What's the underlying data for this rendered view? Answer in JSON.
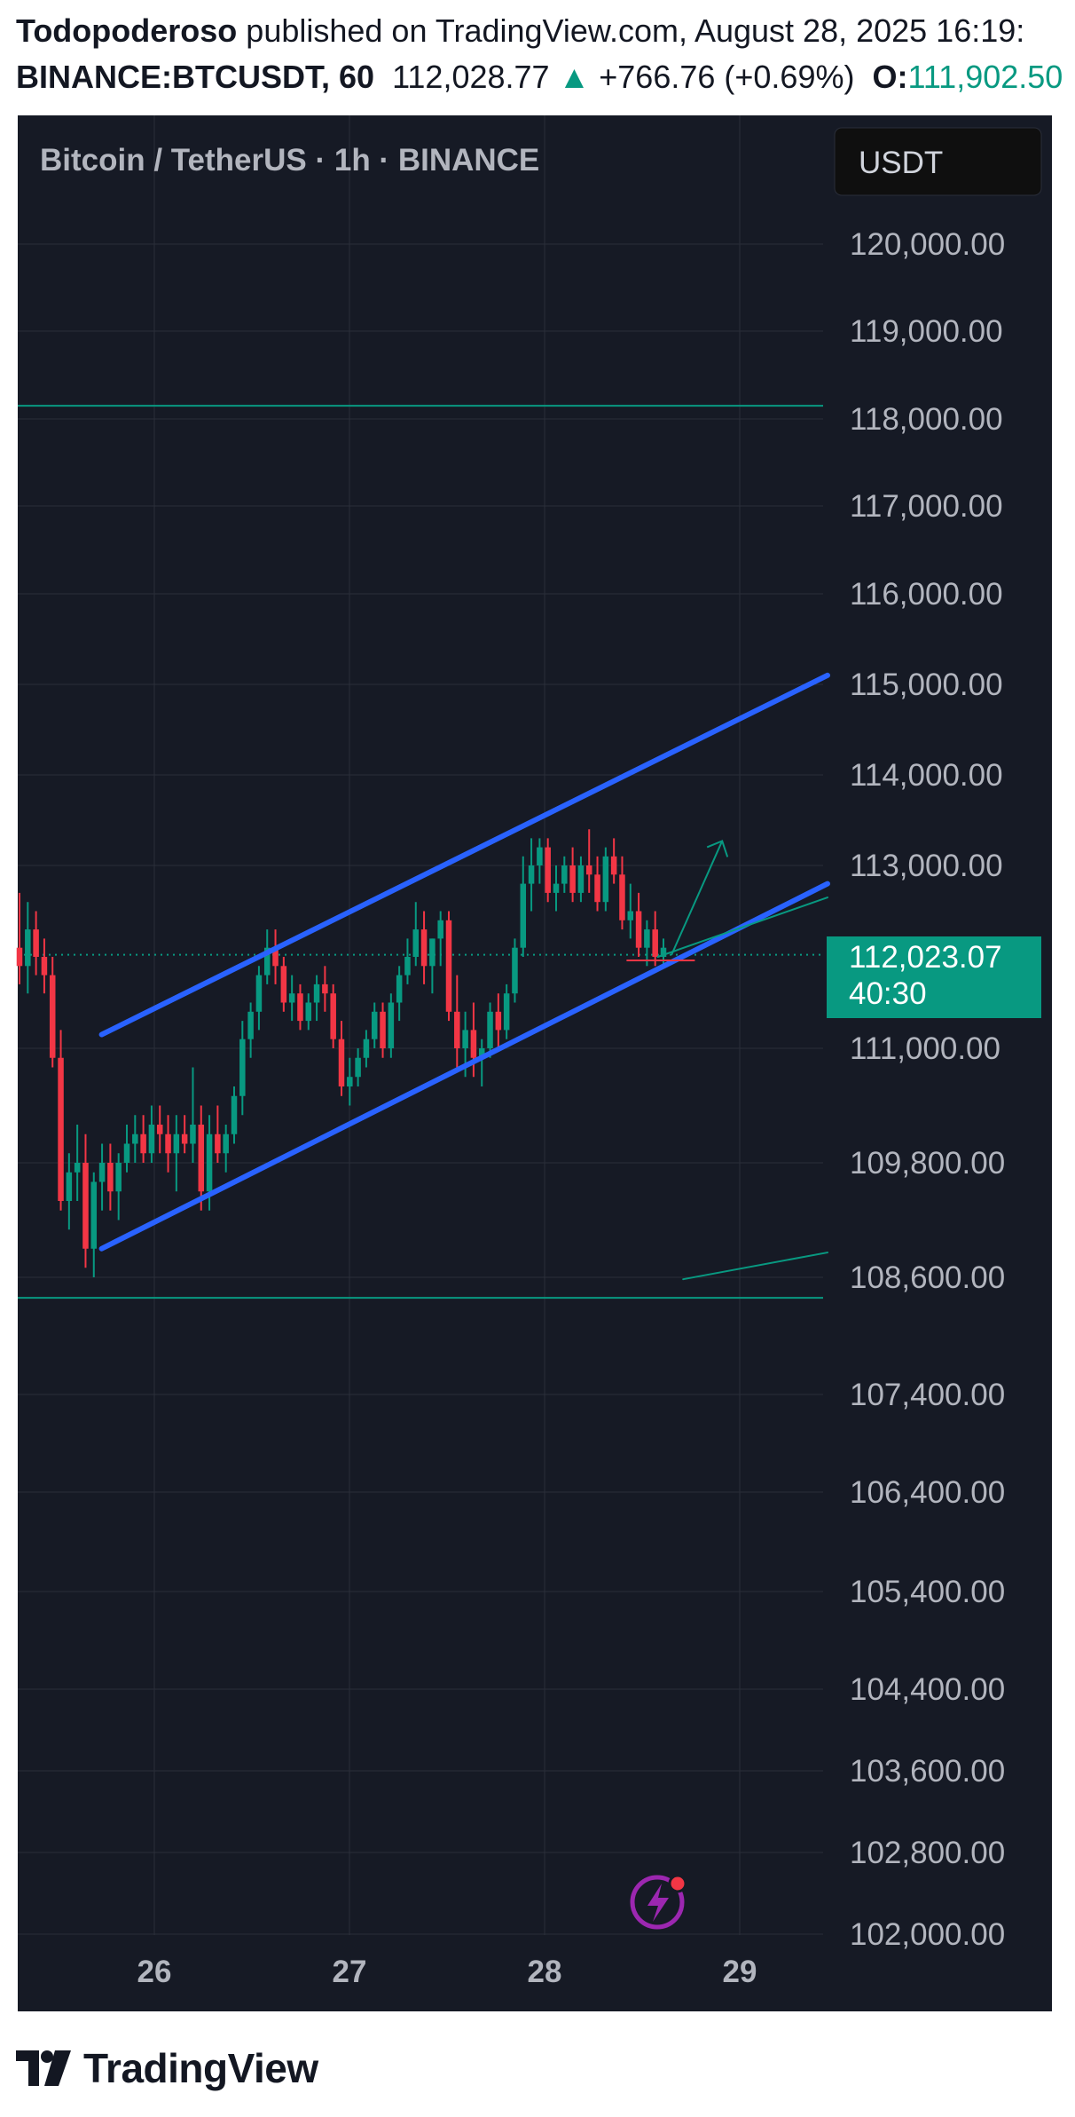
{
  "header": {
    "author": "Todopoderoso",
    "published_text": " published on TradingView.com, August 28, 2025 16:19:",
    "symbol": "BINANCE:BTCUSDT, 60",
    "last_price": "112,028.77",
    "change_arrow": "▲",
    "change": "+766.76 (+0.69%)",
    "open_label": "O:",
    "open_value": "111,902.50"
  },
  "chart": {
    "legend": "Bitcoin / TetherUS · 1h · BINANCE",
    "currency_button": "USDT",
    "price_tag": "112,023.07",
    "countdown": "40:30",
    "colors": {
      "background": "#161a25",
      "grid": "#2a2e39",
      "up": "#089981",
      "down": "#f23645",
      "channel": "#2962ff",
      "tag": "#089981"
    }
  },
  "chart_data": {
    "type": "candlestick",
    "symbol": "BINANCE:BTCUSDT",
    "interval": "1h",
    "title": "Bitcoin / TetherUS · 1h · BINANCE",
    "x_ticks": [
      "26",
      "27",
      "28",
      "29"
    ],
    "y_ticks": [
      "120,000.00",
      "119,000.00",
      "118,000.00",
      "117,000.00",
      "116,000.00",
      "115,000.00",
      "114,000.00",
      "113,000.00",
      "111,000.00",
      "109,800.00",
      "108,600.00",
      "107,400.00",
      "106,400.00",
      "105,400.00",
      "104,400.00",
      "103,600.00",
      "102,800.00",
      "102,000.00"
    ],
    "y_tick_values": [
      120000,
      119000,
      118000,
      117000,
      116000,
      115000,
      114000,
      113000,
      111000,
      109800,
      108600,
      107400,
      106400,
      105400,
      104400,
      103600,
      102800,
      102000
    ],
    "current_price": 112023.07,
    "candles": [
      [
        112100,
        112700,
        111700,
        111900
      ],
      [
        111900,
        112600,
        111600,
        112300
      ],
      [
        112300,
        112500,
        111800,
        112000
      ],
      [
        112000,
        112200,
        111600,
        111800
      ],
      [
        111800,
        112000,
        110800,
        110900
      ],
      [
        110900,
        111200,
        109300,
        109400
      ],
      [
        109400,
        109900,
        109100,
        109700
      ],
      [
        109700,
        110200,
        109400,
        109800
      ],
      [
        109800,
        110100,
        108700,
        108900
      ],
      [
        108900,
        109700,
        108600,
        109600
      ],
      [
        109600,
        110000,
        109300,
        109800
      ],
      [
        109800,
        110000,
        109300,
        109500
      ],
      [
        109500,
        109900,
        109200,
        109800
      ],
      [
        109800,
        110200,
        109700,
        110000
      ],
      [
        110000,
        110300,
        109800,
        110100
      ],
      [
        110100,
        110300,
        109800,
        109900
      ],
      [
        109900,
        110400,
        109800,
        110200
      ],
      [
        110200,
        110400,
        109900,
        110100
      ],
      [
        110100,
        110300,
        109700,
        109900
      ],
      [
        109900,
        110300,
        109500,
        110100
      ],
      [
        110100,
        110300,
        109900,
        110000
      ],
      [
        110000,
        110800,
        109800,
        110200
      ],
      [
        110200,
        110400,
        109300,
        109500
      ],
      [
        109500,
        110300,
        109300,
        110100
      ],
      [
        110100,
        110400,
        109800,
        109900
      ],
      [
        109900,
        110200,
        109700,
        110100
      ],
      [
        110100,
        110600,
        110000,
        110500
      ],
      [
        110500,
        111300,
        110300,
        111100
      ],
      [
        111100,
        111500,
        110900,
        111400
      ],
      [
        111400,
        111900,
        111200,
        111800
      ],
      [
        111800,
        112300,
        111700,
        112100
      ],
      [
        112100,
        112300,
        111700,
        111900
      ],
      [
        111900,
        112000,
        111400,
        111500
      ],
      [
        111500,
        111800,
        111300,
        111600
      ],
      [
        111600,
        111700,
        111200,
        111300
      ],
      [
        111300,
        111600,
        111200,
        111500
      ],
      [
        111500,
        111800,
        111300,
        111700
      ],
      [
        111700,
        111900,
        111400,
        111600
      ],
      [
        111600,
        111700,
        111000,
        111100
      ],
      [
        111100,
        111300,
        110500,
        110600
      ],
      [
        110600,
        110900,
        110400,
        110700
      ],
      [
        110700,
        111000,
        110600,
        110900
      ],
      [
        110900,
        111200,
        110800,
        111100
      ],
      [
        111100,
        111500,
        111000,
        111400
      ],
      [
        111400,
        111500,
        110900,
        111000
      ],
      [
        111000,
        111600,
        110900,
        111500
      ],
      [
        111500,
        111900,
        111300,
        111800
      ],
      [
        111800,
        112200,
        111700,
        112000
      ],
      [
        112000,
        112600,
        111900,
        112300
      ],
      [
        112300,
        112500,
        111700,
        111900
      ],
      [
        111900,
        112200,
        111600,
        112200
      ],
      [
        112200,
        112500,
        111900,
        112400
      ],
      [
        112400,
        112500,
        111300,
        111400
      ],
      [
        111400,
        111800,
        110800,
        111000
      ],
      [
        111000,
        111400,
        110700,
        111200
      ],
      [
        111200,
        111500,
        110700,
        110900
      ],
      [
        110900,
        111100,
        110600,
        111000
      ],
      [
        111000,
        111500,
        110900,
        111400
      ],
      [
        111400,
        111600,
        111000,
        111200
      ],
      [
        111200,
        111700,
        111100,
        111600
      ],
      [
        111600,
        112200,
        111500,
        112100
      ],
      [
        112100,
        113100,
        112000,
        112800
      ],
      [
        112800,
        113300,
        112500,
        113000
      ],
      [
        113000,
        113300,
        112800,
        113200
      ],
      [
        113200,
        113300,
        112600,
        112700
      ],
      [
        112700,
        113000,
        112500,
        112800
      ],
      [
        112800,
        113100,
        112700,
        113000
      ],
      [
        113000,
        113200,
        112600,
        112700
      ],
      [
        112700,
        113100,
        112600,
        113000
      ],
      [
        113000,
        113400,
        112700,
        112900
      ],
      [
        112900,
        113100,
        112500,
        112600
      ],
      [
        112600,
        113200,
        112500,
        113100
      ],
      [
        113100,
        113300,
        112800,
        112900
      ],
      [
        112900,
        113100,
        112300,
        112400
      ],
      [
        112400,
        112800,
        112200,
        112500
      ],
      [
        112500,
        112700,
        112000,
        112100
      ],
      [
        112100,
        112400,
        111900,
        112300
      ],
      [
        112300,
        112500,
        111900,
        112000
      ],
      [
        112000,
        112200,
        111900,
        112100
      ]
    ],
    "drawings": {
      "channel_upper": [
        [
          25.73,
          111150
        ],
        [
          29.45,
          115100
        ]
      ],
      "channel_lower": [
        [
          25.73,
          108900
        ],
        [
          29.45,
          112800
        ]
      ],
      "inner_trendline": [
        [
          28.58,
          112000
        ],
        [
          29.45,
          112650
        ]
      ],
      "horizontal_lines": [
        118150,
        108390
      ],
      "forecast_arrow": [
        [
          28.65,
          112020
        ],
        [
          28.91,
          113270
        ]
      ],
      "small_trendline": [
        [
          28.71,
          108580
        ],
        [
          29.45,
          108860
        ]
      ]
    }
  },
  "footer": {
    "brand": "TradingView"
  }
}
